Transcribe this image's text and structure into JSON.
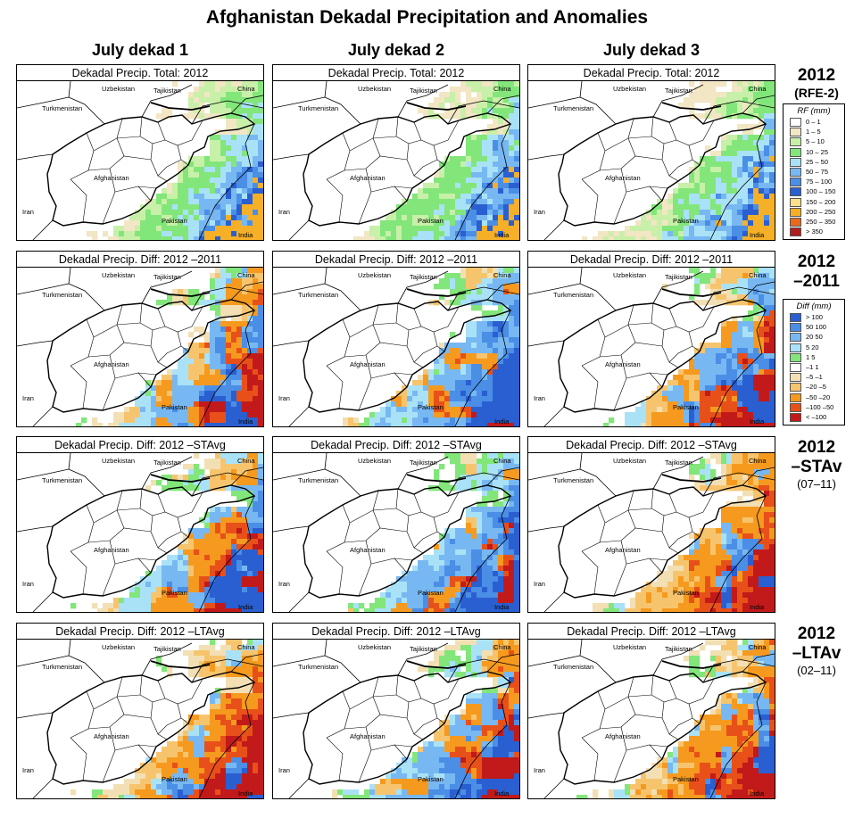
{
  "title": "Afghanistan Dekadal Precipitation and Anomalies",
  "columns": [
    "July dekad 1",
    "July dekad 2",
    "July dekad 3"
  ],
  "rows": [
    {
      "label_line1": "2012",
      "label_line2": "(RFE-2)",
      "label_line3": "",
      "panel_title": "Dekadal Precip. Total: 2012",
      "kind": "total"
    },
    {
      "label_line1": "2012",
      "label_line2": "–2011",
      "label_line3": "",
      "panel_title": "Dekadal Precip. Diff:  2012 –2011",
      "kind": "diff"
    },
    {
      "label_line1": "2012",
      "label_line2": "–STAv",
      "label_line3": "(07–11)",
      "panel_title": "Dekadal Precip. Diff:  2012 –STAvg",
      "kind": "diff"
    },
    {
      "label_line1": "2012",
      "label_line2": "–LTAv",
      "label_line3": "(02–11)",
      "panel_title": "Dekadal Precip. Diff:  2012 –LTAvg",
      "kind": "diff"
    }
  ],
  "place_names": {
    "uzbekistan": "Uzbekistan",
    "tajikistan": "Tajikistan",
    "china": "China",
    "turkmenistan": "Turkmenistan",
    "afghanistan": "Afghanistan",
    "iran": "Iran",
    "pakistan": "Pakistan",
    "india": "India"
  },
  "legends": {
    "rf": {
      "title": "RF (mm)",
      "items": [
        {
          "label": "0 – 1",
          "color": "#ffffff"
        },
        {
          "label": "1 – 5",
          "color": "#f2e6c4"
        },
        {
          "label": "5 – 10",
          "color": "#c8f0a8"
        },
        {
          "label": "10 – 25",
          "color": "#82e67a"
        },
        {
          "label": "25 – 50",
          "color": "#a9e2f7"
        },
        {
          "label": "50 – 75",
          "color": "#78b8f2"
        },
        {
          "label": "75 – 100",
          "color": "#4a8ee6"
        },
        {
          "label": "100 – 150",
          "color": "#2a5fd1"
        },
        {
          "label": "150 – 200",
          "color": "#fce08a"
        },
        {
          "label": "200 – 250",
          "color": "#f5b028"
        },
        {
          "label": "250 – 350",
          "color": "#e86a1a"
        },
        {
          "label": "> 350",
          "color": "#b01e1e"
        }
      ]
    },
    "diff": {
      "title": "Diff (mm)",
      "items": [
        {
          "label": "> 100",
          "color": "#2a5fd1"
        },
        {
          "label": "50  100",
          "color": "#4a8ee6"
        },
        {
          "label": "20  50",
          "color": "#78b8f2"
        },
        {
          "label": "5  20",
          "color": "#a9e2f7"
        },
        {
          "label": "1  5",
          "color": "#82e67a"
        },
        {
          "label": "–1  1",
          "color": "#ffffff"
        },
        {
          "label": "–5  –1",
          "color": "#f2e0b4"
        },
        {
          "label": "–20  –5",
          "color": "#f7c46e"
        },
        {
          "label": "–50  –20",
          "color": "#f59a1e"
        },
        {
          "label": "–100  –50",
          "color": "#e8501a"
        },
        {
          "label": "< –100",
          "color": "#c21a1a"
        }
      ]
    }
  }
}
